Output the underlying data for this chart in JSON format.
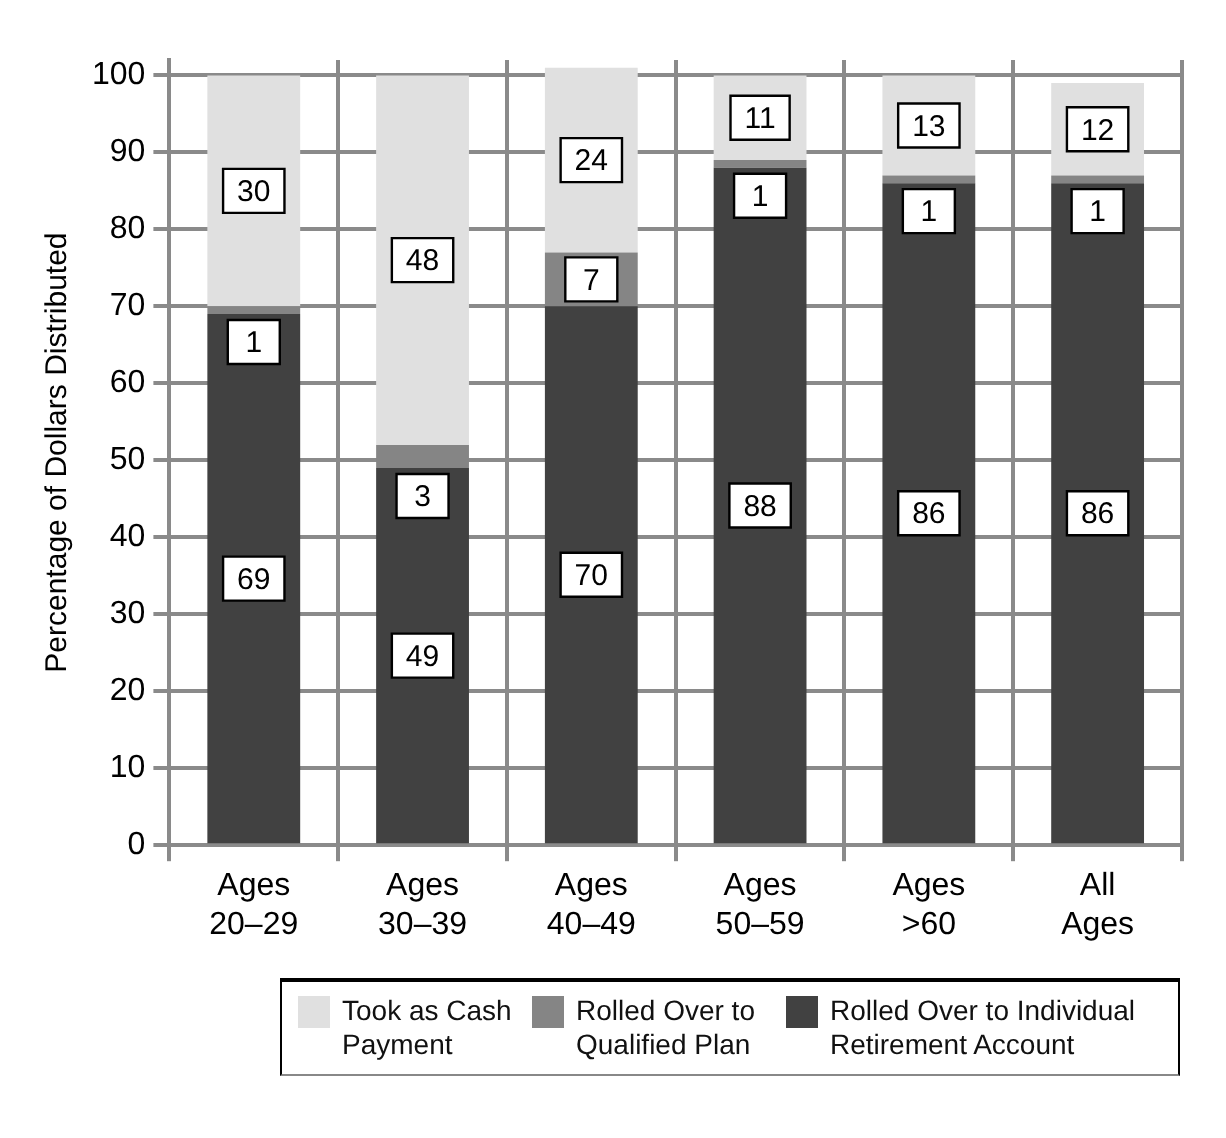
{
  "chart_data": {
    "type": "bar",
    "stacked": true,
    "ylabel": "Percentage of Dollars Distributed",
    "categories": [
      "Ages 20–29",
      "Ages 30–39",
      "Ages 40–49",
      "Ages 50–59",
      "Ages >60",
      "All Ages"
    ],
    "series": [
      {
        "name": "Rolled Over to Individual Retirement Account",
        "color": "#414141",
        "values": [
          69,
          49,
          70,
          88,
          86,
          86
        ]
      },
      {
        "name": "Rolled Over to Qualified Plan",
        "color": "#858585",
        "values": [
          1,
          3,
          7,
          1,
          1,
          1
        ]
      },
      {
        "name": "Took as Cash Payment",
        "color": "#e0e0e0",
        "values": [
          30,
          48,
          24,
          11,
          13,
          12
        ]
      }
    ],
    "ylim": [
      0,
      102
    ],
    "yticks": [
      0,
      10,
      20,
      30,
      40,
      50,
      60,
      70,
      80,
      90,
      100
    ],
    "grid": true,
    "legend": "bottom",
    "data_labels": true
  }
}
